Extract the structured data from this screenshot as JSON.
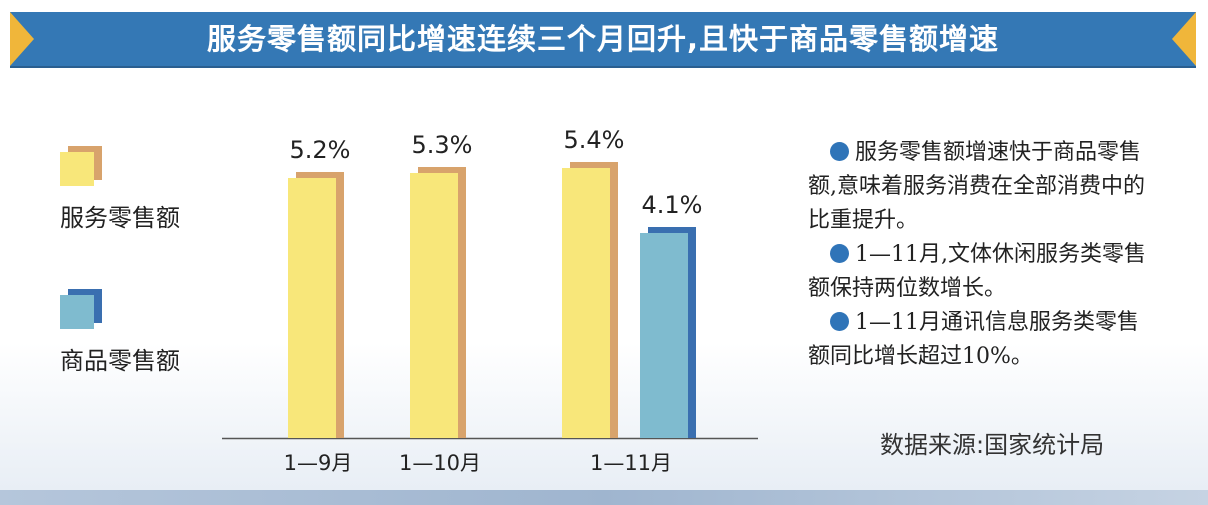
{
  "title": "服务零售额同比增速连续三个月回升,且快于商品零售额增速",
  "legend": [
    {
      "label": "服务零售额",
      "color": "#f8e77a",
      "shadow": "#d8a36c"
    },
    {
      "label": "商品零售额",
      "color": "#7fbbcf",
      "shadow": "#3a6fb0"
    }
  ],
  "notes": [
    "服务零售额增速快于商品零售额,意味着服务消费在全部消费中的比重提升。",
    "1—11月,文体休闲服务类零售额保持两位数增长。",
    "1—11月通讯信息服务类零售额同比增长超过10%。"
  ],
  "source": "数据来源:国家统计局",
  "colors": {
    "title_bg": "#3478b5",
    "title_arrow": "#f0b63a",
    "bullet": "#2f74b8"
  },
  "chart_data": {
    "type": "bar",
    "categories": [
      "1—9月",
      "1—10月",
      "1—11月"
    ],
    "series": [
      {
        "name": "服务零售额",
        "values": [
          5.2,
          5.3,
          5.4
        ],
        "labels": [
          "5.2%",
          "5.3%",
          "5.4%"
        ]
      },
      {
        "name": "商品零售额",
        "values": [
          null,
          null,
          4.1
        ],
        "labels": [
          "",
          "",
          "4.1%"
        ]
      }
    ],
    "unit": "%",
    "ylim": [
      0,
      6
    ],
    "grid": false,
    "legend_position": "left"
  }
}
